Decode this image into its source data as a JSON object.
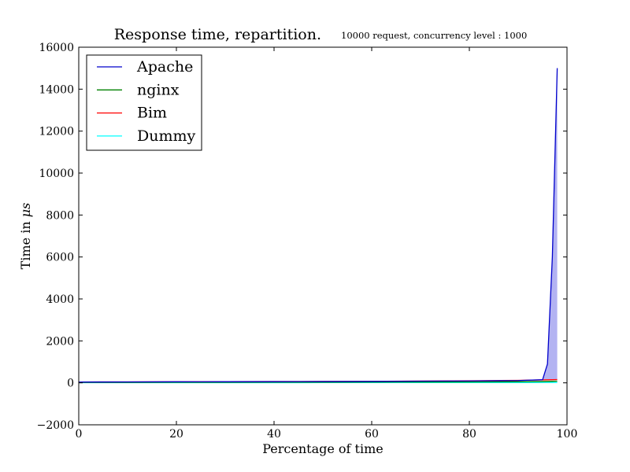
{
  "chart_data": {
    "type": "line",
    "title": "Response time, repartition.",
    "subtitle": "10000 request, concurrency level : 1000",
    "xlabel": "Percentage of time",
    "ylabel_prefix": "Time in ",
    "ylabel_unit": "μs",
    "xlim": [
      0,
      100
    ],
    "ylim": [
      -2000,
      16000
    ],
    "xticks": [
      0,
      20,
      40,
      60,
      80,
      100
    ],
    "yticks": [
      -2000,
      0,
      2000,
      4000,
      6000,
      8000,
      10000,
      12000,
      14000,
      16000
    ],
    "xtick_labels": [
      "0",
      "20",
      "40",
      "60",
      "80",
      "100"
    ],
    "ytick_labels": [
      "−2000",
      "0",
      "2000",
      "4000",
      "6000",
      "8000",
      "10000",
      "12000",
      "14000",
      "16000"
    ],
    "grid": false,
    "legend_placement": "top-left",
    "series": [
      {
        "name": "Apache",
        "color": "#0000cc",
        "fill": "#b3b3f2",
        "x": [
          0,
          10,
          20,
          30,
          40,
          50,
          60,
          70,
          80,
          90,
          95,
          96,
          97,
          98
        ],
        "y": [
          40,
          45,
          50,
          55,
          60,
          65,
          70,
          80,
          90,
          110,
          150,
          900,
          6000,
          15000
        ]
      },
      {
        "name": "nginx",
        "color": "#008000",
        "x": [
          0,
          10,
          20,
          30,
          40,
          50,
          60,
          70,
          80,
          90,
          95,
          96,
          97,
          98
        ],
        "y": [
          20,
          22,
          25,
          28,
          30,
          33,
          36,
          40,
          45,
          55,
          65,
          70,
          75,
          80
        ]
      },
      {
        "name": "Bim",
        "color": "#ff0000",
        "x": [
          0,
          10,
          20,
          30,
          40,
          50,
          60,
          70,
          80,
          90,
          95,
          96,
          97,
          98
        ],
        "y": [
          40,
          45,
          50,
          55,
          60,
          65,
          70,
          85,
          100,
          120,
          140,
          145,
          150,
          155
        ]
      },
      {
        "name": "Dummy",
        "color": "#00ffff",
        "x": [
          0,
          10,
          20,
          30,
          40,
          50,
          60,
          70,
          80,
          90,
          95,
          96,
          97,
          98
        ],
        "y": [
          5,
          6,
          7,
          8,
          9,
          10,
          11,
          12,
          13,
          14,
          15,
          16,
          17,
          18
        ]
      }
    ]
  }
}
